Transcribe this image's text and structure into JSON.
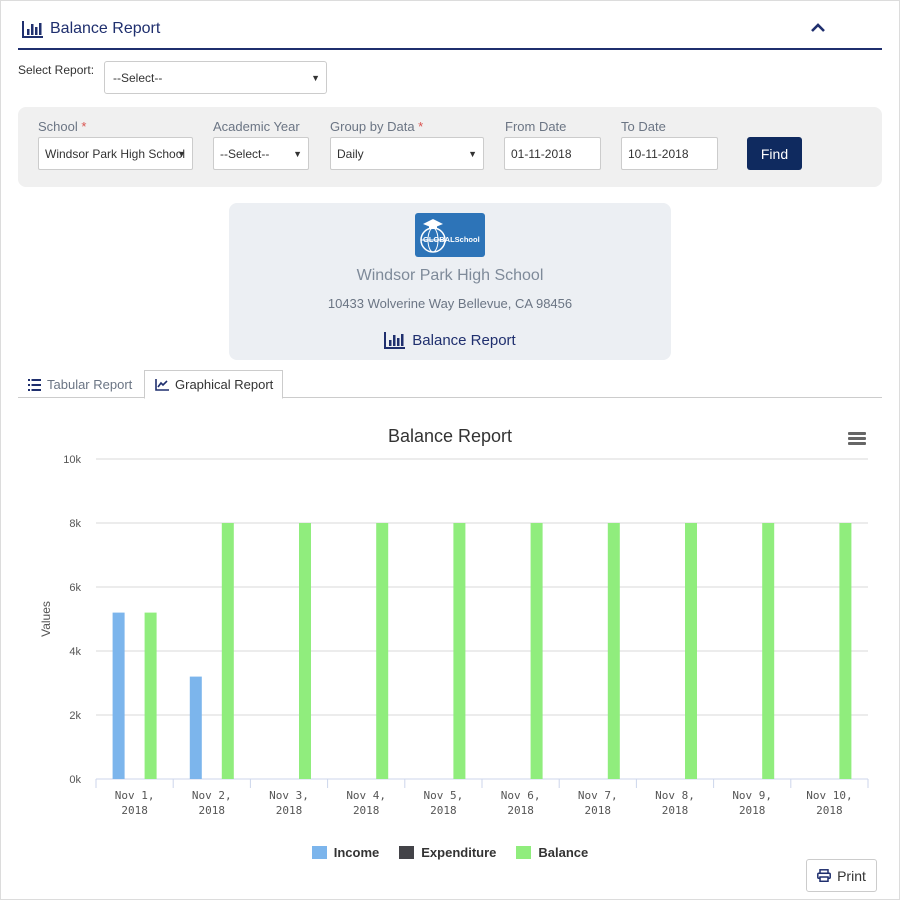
{
  "header": {
    "title": "Balance Report"
  },
  "select_report": {
    "label": "Select Report:",
    "value": "--Select--"
  },
  "filters": {
    "school": {
      "label": "School",
      "value": "Windsor Park High School"
    },
    "academic_year": {
      "label": "Academic Year",
      "value": "--Select--"
    },
    "group_by": {
      "label": "Group by Data",
      "value": "Daily"
    },
    "from_date": {
      "label": "From Date",
      "value": "01-11-2018"
    },
    "to_date": {
      "label": "To Date",
      "value": "10-11-2018"
    },
    "required_mark": "*",
    "find_label": "Find"
  },
  "card": {
    "logo_text": "GLOBALSchool",
    "school_name": "Windsor Park High School",
    "address": "10433 Wolverine Way Bellevue, CA 98456",
    "report_title": "Balance Report"
  },
  "tabs": [
    {
      "label": "Tabular Report",
      "active": false
    },
    {
      "label": "Graphical Report",
      "active": true
    }
  ],
  "print_label": "Print",
  "colors": {
    "income": "#7cb5ec",
    "expenditure": "#434348",
    "balance": "#90ed7d",
    "accent": "#1f2f6e"
  },
  "chart_data": {
    "type": "bar",
    "title": "Balance Report",
    "xlabel": "",
    "ylabel": "Values",
    "ylim": [
      0,
      10000
    ],
    "yticks": [
      0,
      2000,
      4000,
      6000,
      8000,
      10000
    ],
    "ytick_labels": [
      "0k",
      "2k",
      "4k",
      "6k",
      "8k",
      "10k"
    ],
    "categories": [
      [
        "Nov 1,",
        "2018"
      ],
      [
        "Nov 2,",
        "2018"
      ],
      [
        "Nov 3,",
        "2018"
      ],
      [
        "Nov 4,",
        "2018"
      ],
      [
        "Nov 5,",
        "2018"
      ],
      [
        "Nov 6,",
        "2018"
      ],
      [
        "Nov 7,",
        "2018"
      ],
      [
        "Nov 8,",
        "2018"
      ],
      [
        "Nov 9,",
        "2018"
      ],
      [
        "Nov 10,",
        "2018"
      ]
    ],
    "series": [
      {
        "name": "Income",
        "values": [
          5200,
          3200,
          0,
          0,
          0,
          0,
          0,
          0,
          0,
          0
        ]
      },
      {
        "name": "Expenditure",
        "values": [
          0,
          0,
          0,
          0,
          0,
          0,
          0,
          0,
          0,
          0
        ]
      },
      {
        "name": "Balance",
        "values": [
          5200,
          8000,
          8000,
          8000,
          8000,
          8000,
          8000,
          8000,
          8000,
          8000
        ]
      }
    ],
    "grid": true,
    "legend": "bottom-center"
  }
}
